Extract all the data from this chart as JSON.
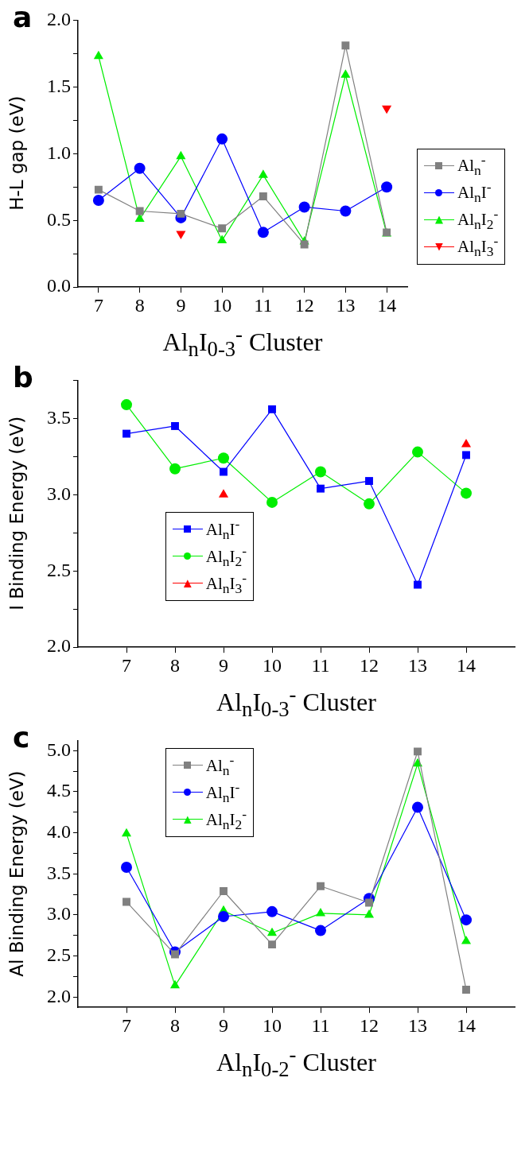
{
  "chart_data": [
    {
      "type": "line",
      "title": "a",
      "xlabel": "Al$_{n}$I$_{0-3}$$^{-}$ Cluster",
      "ylabel": "H-L gap (eV)",
      "x": [
        7,
        8,
        9,
        10,
        11,
        12,
        13,
        14
      ],
      "xlim": [
        6.5,
        14.5
      ],
      "xticks": [
        7,
        8,
        9,
        10,
        11,
        12,
        13,
        14
      ],
      "ylim": [
        0,
        2
      ],
      "yticks": [
        {
          "value": 0,
          "label": "0.0"
        },
        {
          "value": 0.25,
          "label": null
        },
        {
          "value": 0.5,
          "label": "0.5"
        },
        {
          "value": 0.75,
          "label": null
        },
        {
          "value": 1,
          "label": "1.0"
        },
        {
          "value": 1.25,
          "label": null
        },
        {
          "value": 1.5,
          "label": "1.5"
        },
        {
          "value": 1.75,
          "label": null
        },
        {
          "value": 2,
          "label": "2.0"
        }
      ],
      "grid": false,
      "legend": "right",
      "series": [
        {
          "name": "Al$_{n}$$^{-}$",
          "color": "#808080",
          "marker": "square",
          "values": [
            0.73,
            0.57,
            0.55,
            0.44,
            0.68,
            0.32,
            1.81,
            0.41
          ]
        },
        {
          "name": "Al$_{n}$I$^{-}$",
          "color": "#0000ff",
          "marker": "circle",
          "values": [
            0.65,
            0.89,
            0.52,
            1.11,
            0.41,
            0.6,
            0.57,
            0.75
          ]
        },
        {
          "name": "Al$_{n}$I$_{2}$$^{-}$",
          "color": "#00ee00",
          "marker": "triangle",
          "values": [
            1.73,
            0.51,
            0.98,
            0.35,
            0.84,
            0.34,
            1.59,
            0.4
          ]
        },
        {
          "name": "Al$_{n}$I$_{3}$$^{-}$",
          "type": "scatter",
          "color": "#ff0000",
          "marker": "triangle-down",
          "values": [
            null,
            null,
            0.4,
            null,
            null,
            null,
            null,
            1.34
          ]
        }
      ]
    },
    {
      "type": "line",
      "title": "b",
      "xlabel": "Al$_{n}$I$_{0-3}$$^{-}$ Cluster",
      "ylabel": "I Binding Energy (eV)",
      "x": [
        7,
        8,
        9,
        10,
        11,
        12,
        13,
        14
      ],
      "xlim": [
        6,
        15
      ],
      "xticks": [
        7,
        8,
        9,
        10,
        11,
        12,
        13,
        14
      ],
      "ylim": [
        2,
        3.75
      ],
      "yticks": [
        {
          "value": 2,
          "label": "2.0"
        },
        {
          "value": 2.25,
          "label": null
        },
        {
          "value": 2.5,
          "label": "2.5"
        },
        {
          "value": 2.75,
          "label": null
        },
        {
          "value": 3,
          "label": "3.0"
        },
        {
          "value": 3.25,
          "label": null
        },
        {
          "value": 3.5,
          "label": "3.5"
        },
        {
          "value": 3.75,
          "label": null
        }
      ],
      "grid": false,
      "legend": "bottom left",
      "series": [
        {
          "name": "Al$_{n}$I$^{-}$",
          "color": "#0000ff",
          "marker": "square",
          "values": [
            3.4,
            3.45,
            3.15,
            3.56,
            3.04,
            3.09,
            2.41,
            3.26
          ]
        },
        {
          "name": "Al$_{n}$I$_{2}$$^{-}$",
          "color": "#00ee00",
          "marker": "circle",
          "values": [
            3.59,
            3.17,
            3.24,
            2.95,
            3.15,
            2.94,
            3.28,
            3.01
          ]
        },
        {
          "name": "Al$_{n}$I$_{3}$$^{-}$",
          "type": "scatter",
          "color": "#ff0000",
          "marker": "triangle",
          "values": [
            null,
            null,
            3.0,
            null,
            null,
            null,
            null,
            3.33
          ]
        }
      ]
    },
    {
      "type": "line",
      "title": "c",
      "xlabel": "Al$_{n}$I$_{0-2}$$^{-}$ Cluster",
      "ylabel": "Al Binding Energy (eV)",
      "x": [
        7,
        8,
        9,
        10,
        11,
        12,
        13,
        14
      ],
      "xlim": [
        6,
        15
      ],
      "xticks": [
        7,
        8,
        9,
        10,
        11,
        12,
        13,
        14
      ],
      "ylim": [
        1.875,
        5.125
      ],
      "yticks": [
        {
          "value": 2,
          "label": "2.0"
        },
        {
          "value": 2.25,
          "label": null
        },
        {
          "value": 2.5,
          "label": "2.5"
        },
        {
          "value": 2.75,
          "label": null
        },
        {
          "value": 3,
          "label": "3.0"
        },
        {
          "value": 3.25,
          "label": null
        },
        {
          "value": 3.5,
          "label": "3.5"
        },
        {
          "value": 3.75,
          "label": null
        },
        {
          "value": 4,
          "label": "4.0"
        },
        {
          "value": 4.25,
          "label": null
        },
        {
          "value": 4.5,
          "label": "4.5"
        },
        {
          "value": 4.75,
          "label": null
        },
        {
          "value": 5,
          "label": "5.0"
        }
      ],
      "grid": false,
      "legend": "top left",
      "series": [
        {
          "name": "Al$_{n}$$^{-}$",
          "color": "#808080",
          "marker": "square",
          "values": [
            3.16,
            2.52,
            3.29,
            2.64,
            3.35,
            3.15,
            4.99,
            2.09
          ]
        },
        {
          "name": "Al$_{n}$I$^{-}$",
          "color": "#0000ff",
          "marker": "circle",
          "values": [
            3.58,
            2.55,
            2.98,
            3.04,
            2.81,
            3.2,
            4.31,
            2.94
          ]
        },
        {
          "name": "Al$_{n}$I$_{2}$$^{-}$",
          "color": "#00ee00",
          "marker": "triangle",
          "values": [
            3.99,
            2.14,
            3.05,
            2.78,
            3.02,
            3.0,
            4.84,
            2.68
          ]
        }
      ]
    }
  ]
}
